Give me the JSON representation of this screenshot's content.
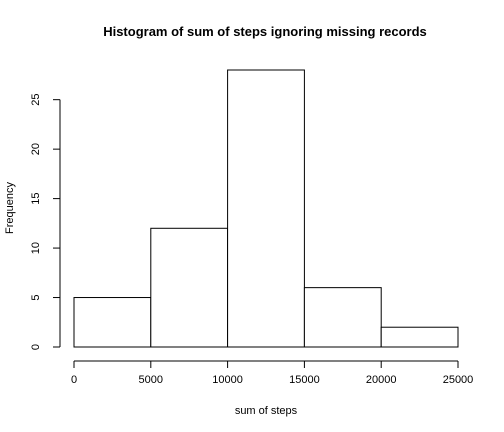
{
  "chart_data": {
    "type": "bar",
    "title": "Histogram of sum of steps ignoring missing records",
    "xlabel": "sum of steps",
    "ylabel": "Frequency",
    "bins": [
      {
        "start": 0,
        "end": 5000,
        "count": 5
      },
      {
        "start": 5000,
        "end": 10000,
        "count": 12
      },
      {
        "start": 10000,
        "end": 15000,
        "count": 28
      },
      {
        "start": 15000,
        "end": 20000,
        "count": 6
      },
      {
        "start": 20000,
        "end": 25000,
        "count": 2
      }
    ],
    "xlim": [
      0,
      25000
    ],
    "ylim": [
      0,
      28
    ],
    "x_ticks": [
      "0",
      "5000",
      "10000",
      "15000",
      "20000",
      "25000"
    ],
    "y_ticks": [
      "0",
      "5",
      "10",
      "15",
      "20",
      "25"
    ],
    "grid": false,
    "legend": "none",
    "colors": {
      "bar_fill": "#ffffff",
      "bar_stroke": "#000000",
      "background": "#ffffff"
    }
  }
}
